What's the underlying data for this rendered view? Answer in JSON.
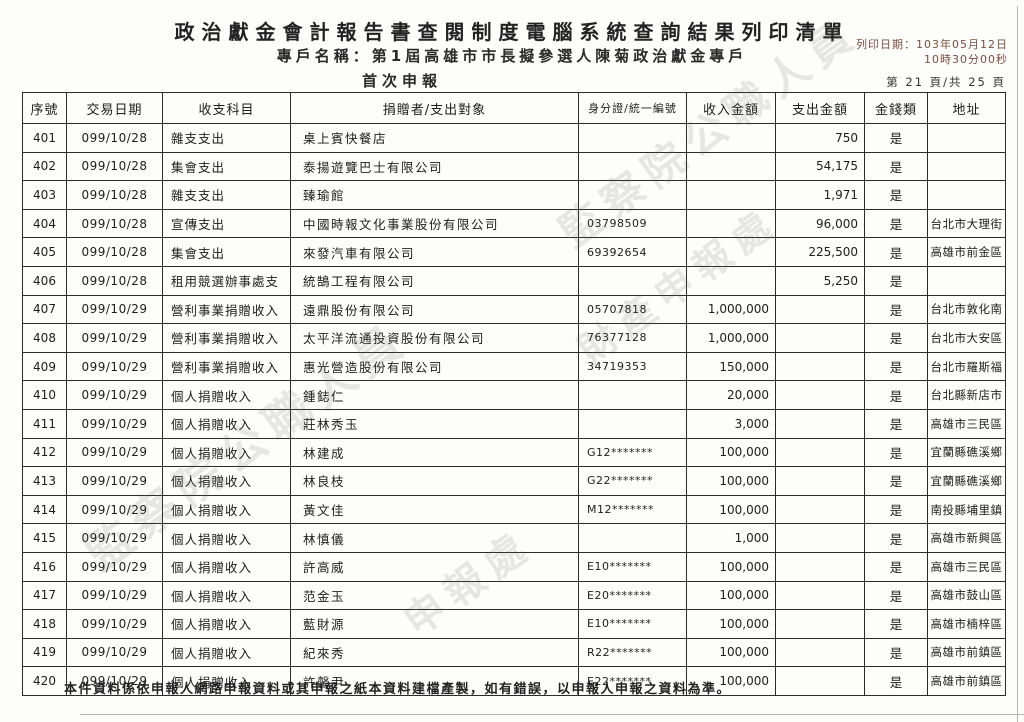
{
  "page": {
    "title": "政治獻金會計報告書查閱制度電腦系統查詢結果列印清單",
    "account_name": "專戶名稱：第1屆高雄市市長擬參選人陳菊政治獻金專戶",
    "report_type": "首次申報",
    "print_date_line1": "列印日期：103年05月12日",
    "print_date_line2": "10時30分00秒",
    "page_indicator": "第 21 頁/共 25 頁",
    "footer_note": "本件資料係依申報人網路申報資料或其申報之紙本資料建檔產製，如有錯誤，以申報人申報之資料為準。",
    "watermarks": [
      "監察院公職人員",
      "財產申報處",
      "監察院公職人員",
      "申報處"
    ]
  },
  "table": {
    "columns": [
      "序號",
      "交易日期",
      "收支科目",
      "捐贈者/支出對象",
      "身分證/統一編號",
      "收入金額",
      "支出金額",
      "金錢類",
      "地址"
    ],
    "rows": [
      [
        "401",
        "099/10/28",
        "雜支支出",
        "桌上賓快餐店",
        "",
        "",
        "750",
        "是",
        ""
      ],
      [
        "402",
        "099/10/28",
        "集會支出",
        "泰揚遊覽巴士有限公司",
        "",
        "",
        "54,175",
        "是",
        ""
      ],
      [
        "403",
        "099/10/28",
        "雜支支出",
        "臻瑜館",
        "",
        "",
        "1,971",
        "是",
        ""
      ],
      [
        "404",
        "099/10/28",
        "宣傳支出",
        "中國時報文化事業股份有限公司",
        "03798509",
        "",
        "96,000",
        "是",
        "台北市大理街"
      ],
      [
        "405",
        "099/10/28",
        "集會支出",
        "來發汽車有限公司",
        "69392654",
        "",
        "225,500",
        "是",
        "高雄市前金區"
      ],
      [
        "406",
        "099/10/28",
        "租用競選辦事處支",
        "統鵠工程有限公司",
        "",
        "",
        "5,250",
        "是",
        ""
      ],
      [
        "407",
        "099/10/29",
        "營利事業捐贈收入",
        "遠鼎股份有限公司",
        "05707818",
        "1,000,000",
        "",
        "是",
        "台北市敦化南"
      ],
      [
        "408",
        "099/10/29",
        "營利事業捐贈收入",
        "太平洋流通投資股份有限公司",
        "76377128",
        "1,000,000",
        "",
        "是",
        "台北市大安區"
      ],
      [
        "409",
        "099/10/29",
        "營利事業捐贈收入",
        "惠光營造股份有限公司",
        "34719353",
        "150,000",
        "",
        "是",
        "台北市羅斯福"
      ],
      [
        "410",
        "099/10/29",
        "個人捐贈收入",
        "鍾鋕仁",
        "",
        "20,000",
        "",
        "是",
        "台北縣新店市"
      ],
      [
        "411",
        "099/10/29",
        "個人捐贈收入",
        "莊林秀玉",
        "",
        "3,000",
        "",
        "是",
        "高雄市三民區"
      ],
      [
        "412",
        "099/10/29",
        "個人捐贈收入",
        "林建成",
        "G12*******",
        "100,000",
        "",
        "是",
        "宜蘭縣礁溪鄉"
      ],
      [
        "413",
        "099/10/29",
        "個人捐贈收入",
        "林良枝",
        "G22*******",
        "100,000",
        "",
        "是",
        "宜蘭縣礁溪鄉"
      ],
      [
        "414",
        "099/10/29",
        "個人捐贈收入",
        "黃文佳",
        "M12*******",
        "100,000",
        "",
        "是",
        "南投縣埔里鎮"
      ],
      [
        "415",
        "099/10/29",
        "個人捐贈收入",
        "林慎儀",
        "",
        "1,000",
        "",
        "是",
        "高雄市新興區"
      ],
      [
        "416",
        "099/10/29",
        "個人捐贈收入",
        "許高威",
        "E10*******",
        "100,000",
        "",
        "是",
        "高雄市三民區"
      ],
      [
        "417",
        "099/10/29",
        "個人捐贈收入",
        "范金玉",
        "E20*******",
        "100,000",
        "",
        "是",
        "高雄市鼓山區"
      ],
      [
        "418",
        "099/10/29",
        "個人捐贈收入",
        "藍財源",
        "E10*******",
        "100,000",
        "",
        "是",
        "高雄市楠梓區"
      ],
      [
        "419",
        "099/10/29",
        "個人捐贈收入",
        "紀來秀",
        "R22*******",
        "100,000",
        "",
        "是",
        "高雄市前鎮區"
      ],
      [
        "420",
        "099/10/29",
        "個人捐贈收入",
        "許馨尹",
        "E22*******",
        "100,000",
        "",
        "是",
        "高雄市前鎮區"
      ]
    ]
  }
}
